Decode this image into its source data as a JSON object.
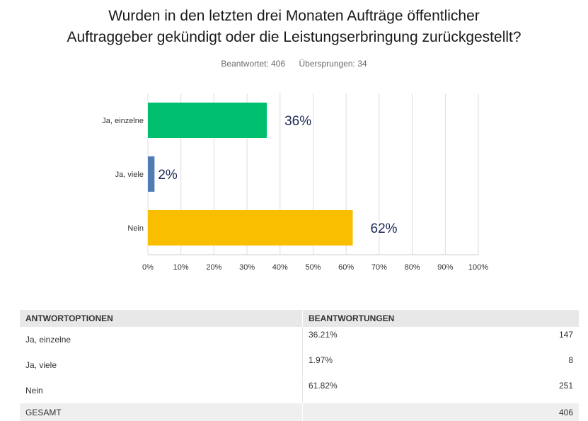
{
  "title_lines": [
    "Wurden in den letzten drei Monaten Aufträge öffentlicher",
    "Auftraggeber gekündigt oder die Leistungserbringung zurückgestellt?"
  ],
  "stats": {
    "answered": "Beantwortet: 406",
    "skipped": "Übersprungen: 34"
  },
  "chart_data": {
    "type": "bar",
    "orientation": "horizontal",
    "categories": [
      "Ja, einzelne",
      "Ja, viele",
      "Nein"
    ],
    "values": [
      36,
      2,
      62
    ],
    "value_labels": [
      "36%",
      "2%",
      "62%"
    ],
    "colors": [
      "#00bf6f",
      "#507cb6",
      "#f9be00"
    ],
    "xlim": [
      0,
      100
    ],
    "xticks": [
      "0%",
      "10%",
      "20%",
      "30%",
      "40%",
      "50%",
      "60%",
      "70%",
      "80%",
      "90%",
      "100%"
    ],
    "grid": true
  },
  "table": {
    "headers": [
      "ANTWORTOPTIONEN",
      "BEANTWORTUNGEN"
    ],
    "rows": [
      {
        "option": "Ja, einzelne",
        "percent": "36.21%",
        "count": "147"
      },
      {
        "option": "Ja, viele",
        "percent": "1.97%",
        "count": "8"
      },
      {
        "option": "Nein",
        "percent": "61.82%",
        "count": "251"
      }
    ],
    "total": {
      "label": "GESAMT",
      "count": "406"
    }
  }
}
